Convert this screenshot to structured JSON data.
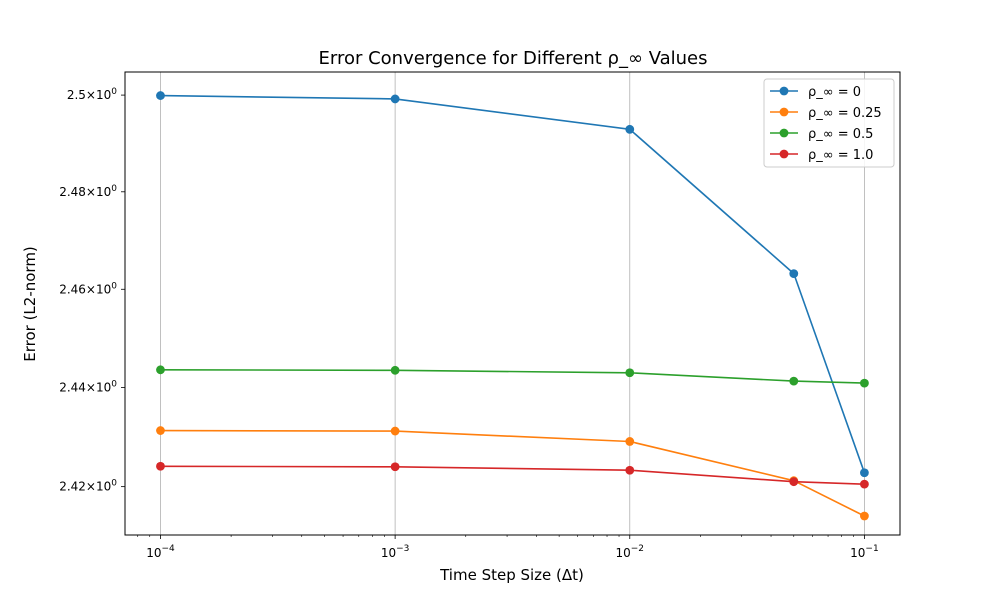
{
  "chart_data": {
    "type": "line",
    "title": "Error Convergence for Different ρ_∞ Values",
    "xlabel": "Time Step Size (Δt)",
    "ylabel": "Error (L2-norm)",
    "x_scale": "log",
    "y_scale": "log",
    "xlim": [
      7.06e-05,
      0.1418
    ],
    "ylim": [
      2.4103,
      2.5048
    ],
    "x_ticks": [
      {
        "value": 0.0001,
        "base": "10",
        "exp": "−4"
      },
      {
        "value": 0.001,
        "base": "10",
        "exp": "−3"
      },
      {
        "value": 0.01,
        "base": "10",
        "exp": "−2"
      },
      {
        "value": 0.1,
        "base": "10",
        "exp": "−1"
      }
    ],
    "y_ticks": [
      {
        "value": 2.42,
        "mant": "2.42",
        "times": "×",
        "base": "10",
        "exp": "0"
      },
      {
        "value": 2.44,
        "mant": "2.44",
        "times": "×",
        "base": "10",
        "exp": "0"
      },
      {
        "value": 2.46,
        "mant": "2.46",
        "times": "×",
        "base": "10",
        "exp": "0"
      },
      {
        "value": 2.48,
        "mant": "2.48",
        "times": "×",
        "base": "10",
        "exp": "0"
      },
      {
        "value": 2.5,
        "mant": "2.5",
        "times": "×",
        "base": "10",
        "exp": "0"
      }
    ],
    "grid": "x-major",
    "legend_position": "top-right",
    "x": [
      0.0001,
      0.001,
      0.01,
      0.05,
      0.1
    ],
    "series": [
      {
        "name": "ρ_∞ = 0",
        "color": "#1f77b4",
        "values": [
          2.4999,
          2.4992,
          2.4929,
          2.4632,
          2.4228
        ]
      },
      {
        "name": "ρ_∞ = 0.25",
        "color": "#ff7f0e",
        "values": [
          2.4313,
          2.4312,
          2.4291,
          2.4212,
          2.4141
        ]
      },
      {
        "name": "ρ_∞ = 0.5",
        "color": "#2ca02c",
        "values": [
          2.4436,
          2.4435,
          2.443,
          2.4413,
          2.4409
        ]
      },
      {
        "name": "ρ_∞ = 1.0",
        "color": "#d62728",
        "values": [
          2.4241,
          2.424,
          2.4233,
          2.421,
          2.4205
        ]
      }
    ]
  }
}
